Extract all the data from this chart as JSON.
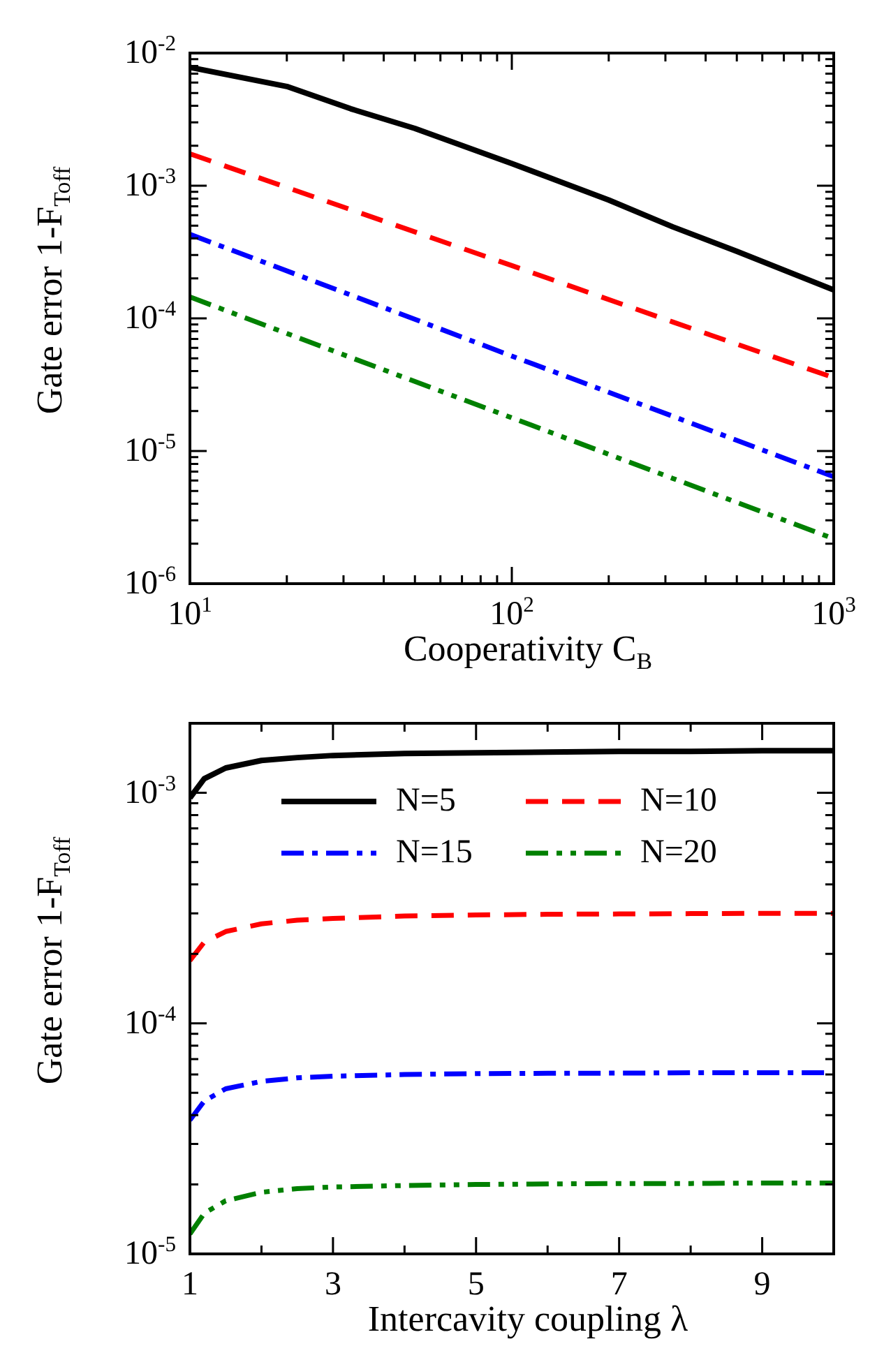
{
  "chart_data": [
    {
      "type": "line",
      "xlabel": "Cooperativity C$_{B}$",
      "ylabel": "Gate error 1-F$_{Toff}$",
      "log": "xy",
      "marker": "none",
      "xlim": [
        10,
        1000
      ],
      "ylim": [
        1e-06,
        0.01
      ],
      "xticks": [
        {
          "value": 10,
          "label": "10$^{1}$"
        },
        {
          "value": 20,
          "label": null
        },
        {
          "value": 30,
          "label": null
        },
        {
          "value": 40,
          "label": null
        },
        {
          "value": 50,
          "label": null
        },
        {
          "value": 60,
          "label": null
        },
        {
          "value": 70,
          "label": null
        },
        {
          "value": 80,
          "label": null
        },
        {
          "value": 90,
          "label": null
        },
        {
          "value": 100,
          "label": "10$^{2}$"
        },
        {
          "value": 200,
          "label": null
        },
        {
          "value": 300,
          "label": null
        },
        {
          "value": 400,
          "label": null
        },
        {
          "value": 500,
          "label": null
        },
        {
          "value": 600,
          "label": null
        },
        {
          "value": 700,
          "label": null
        },
        {
          "value": 800,
          "label": null
        },
        {
          "value": 900,
          "label": null
        },
        {
          "value": 1000,
          "label": "10$^{3}$"
        }
      ],
      "yticks": [
        {
          "value": 1e-06,
          "label": "10$^{-6}$"
        },
        {
          "value": 2e-06,
          "label": null
        },
        {
          "value": 3e-06,
          "label": null
        },
        {
          "value": 4e-06,
          "label": null
        },
        {
          "value": 5e-06,
          "label": null
        },
        {
          "value": 6e-06,
          "label": null
        },
        {
          "value": 7e-06,
          "label": null
        },
        {
          "value": 8e-06,
          "label": null
        },
        {
          "value": 9e-06,
          "label": null
        },
        {
          "value": 1e-05,
          "label": "10$^{-5}$"
        },
        {
          "value": 2e-05,
          "label": null
        },
        {
          "value": 3e-05,
          "label": null
        },
        {
          "value": 4e-05,
          "label": null
        },
        {
          "value": 5e-05,
          "label": null
        },
        {
          "value": 6e-05,
          "label": null
        },
        {
          "value": 7e-05,
          "label": null
        },
        {
          "value": 8e-05,
          "label": null
        },
        {
          "value": 9e-05,
          "label": null
        },
        {
          "value": 0.0001,
          "label": "10$^{-4}$"
        },
        {
          "value": 0.0002,
          "label": null
        },
        {
          "value": 0.0003,
          "label": null
        },
        {
          "value": 0.0004,
          "label": null
        },
        {
          "value": 0.0005,
          "label": null
        },
        {
          "value": 0.0006,
          "label": null
        },
        {
          "value": 0.0007,
          "label": null
        },
        {
          "value": 0.0008,
          "label": null
        },
        {
          "value": 0.0009,
          "label": null
        },
        {
          "value": 0.001,
          "label": "10$^{-3}$"
        },
        {
          "value": 0.002,
          "label": null
        },
        {
          "value": 0.003,
          "label": null
        },
        {
          "value": 0.004,
          "label": null
        },
        {
          "value": 0.005,
          "label": null
        },
        {
          "value": 0.006,
          "label": null
        },
        {
          "value": 0.007,
          "label": null
        },
        {
          "value": 0.008,
          "label": null
        },
        {
          "value": 0.009,
          "label": null
        },
        {
          "value": 0.01,
          "label": "10$^{-2}$"
        }
      ],
      "series": [
        {
          "color": "#000000",
          "line_style": "solid",
          "x": [
            10,
            20,
            31.6,
            50,
            100,
            200,
            316,
            500,
            1000
          ],
          "values": [
            0.0078,
            0.0056,
            0.0038,
            0.0027,
            0.00147,
            0.00078,
            0.00049,
            0.00032,
            0.000164
          ]
        },
        {
          "color": "#ff0000",
          "line_style": "dashed",
          "x": [
            10,
            31.6,
            100,
            316,
            1000
          ],
          "values": [
            0.00174,
            0.00066,
            0.00025,
            9.4e-05,
            3.57e-05
          ]
        },
        {
          "color": "#0000ff",
          "line_style": "dashdot",
          "x": [
            10,
            31.6,
            100,
            316,
            1000
          ],
          "values": [
            0.00043,
            0.00015,
            5.2e-05,
            1.83e-05,
            6.4e-06
          ]
        },
        {
          "color": "#008000",
          "line_style": "dashdotdot",
          "x": [
            10,
            31.6,
            100,
            316,
            1000
          ],
          "values": [
            0.000145,
            5.07e-05,
            1.78e-05,
            6.22e-06,
            2.18e-06
          ]
        }
      ]
    },
    {
      "type": "line",
      "xlabel": "Intercavity coupling λ",
      "ylabel": "Gate error 1-F$_{Toff}$",
      "log": "y",
      "marker": "none",
      "legend": "top",
      "xlim": [
        1,
        10
      ],
      "ylim": [
        1e-05,
        0.002
      ],
      "xticks": [
        1,
        {
          "value": 2,
          "label": null
        },
        3,
        {
          "value": 4,
          "label": null
        },
        5,
        {
          "value": 6,
          "label": null
        },
        7,
        {
          "value": 8,
          "label": null
        },
        9,
        {
          "value": 10,
          "label": null
        }
      ],
      "yticks": [
        {
          "value": 1e-05,
          "label": "10$^{-5}$"
        },
        {
          "value": 2e-05,
          "label": null
        },
        {
          "value": 3e-05,
          "label": null
        },
        {
          "value": 4e-05,
          "label": null
        },
        {
          "value": 5e-05,
          "label": null
        },
        {
          "value": 6e-05,
          "label": null
        },
        {
          "value": 7e-05,
          "label": null
        },
        {
          "value": 8e-05,
          "label": null
        },
        {
          "value": 9e-05,
          "label": null
        },
        {
          "value": 0.0001,
          "label": "10$^{-4}$"
        },
        {
          "value": 0.0002,
          "label": null
        },
        {
          "value": 0.0003,
          "label": null
        },
        {
          "value": 0.0004,
          "label": null
        },
        {
          "value": 0.0005,
          "label": null
        },
        {
          "value": 0.0006,
          "label": null
        },
        {
          "value": 0.0007,
          "label": null
        },
        {
          "value": 0.0008,
          "label": null
        },
        {
          "value": 0.0009,
          "label": null
        },
        {
          "value": 0.001,
          "label": "10$^{-3}$"
        },
        {
          "value": 0.002,
          "label": null
        }
      ],
      "x": [
        1,
        1.2,
        1.5,
        2,
        2.5,
        3,
        4,
        5,
        6,
        7,
        8,
        9,
        10
      ],
      "series": [
        {
          "name": "N=5",
          "color": "#000000",
          "line_style": "solid",
          "values": [
            0.00095,
            0.00115,
            0.00128,
            0.00138,
            0.00142,
            0.00145,
            0.00148,
            0.00149,
            0.0015,
            0.00151,
            0.00151,
            0.00152,
            0.00152
          ]
        },
        {
          "name": "N=10",
          "color": "#ff0000",
          "line_style": "dashed",
          "values": [
            0.000187,
            0.000225,
            0.00025,
            0.00027,
            0.00028,
            0.000285,
            0.000292,
            0.000295,
            0.000297,
            0.000298,
            0.000299,
            0.0003,
            0.0003
          ]
        },
        {
          "name": "N=15",
          "color": "#0000ff",
          "line_style": "dashdot",
          "values": [
            3.8e-05,
            4.6e-05,
            5.2e-05,
            5.6e-05,
            5.8e-05,
            5.9e-05,
            6e-05,
            6.05e-05,
            6.07e-05,
            6.08e-05,
            6.1e-05,
            6.1e-05,
            6.1e-05
          ]
        },
        {
          "name": "N=20",
          "color": "#008000",
          "line_style": "dashdotdot",
          "values": [
            1.22e-05,
            1.5e-05,
            1.7e-05,
            1.85e-05,
            1.92e-05,
            1.95e-05,
            1.98e-05,
            2e-05,
            2.01e-05,
            2.02e-05,
            2.02e-05,
            2.03e-05,
            2.03e-05
          ]
        }
      ]
    }
  ]
}
